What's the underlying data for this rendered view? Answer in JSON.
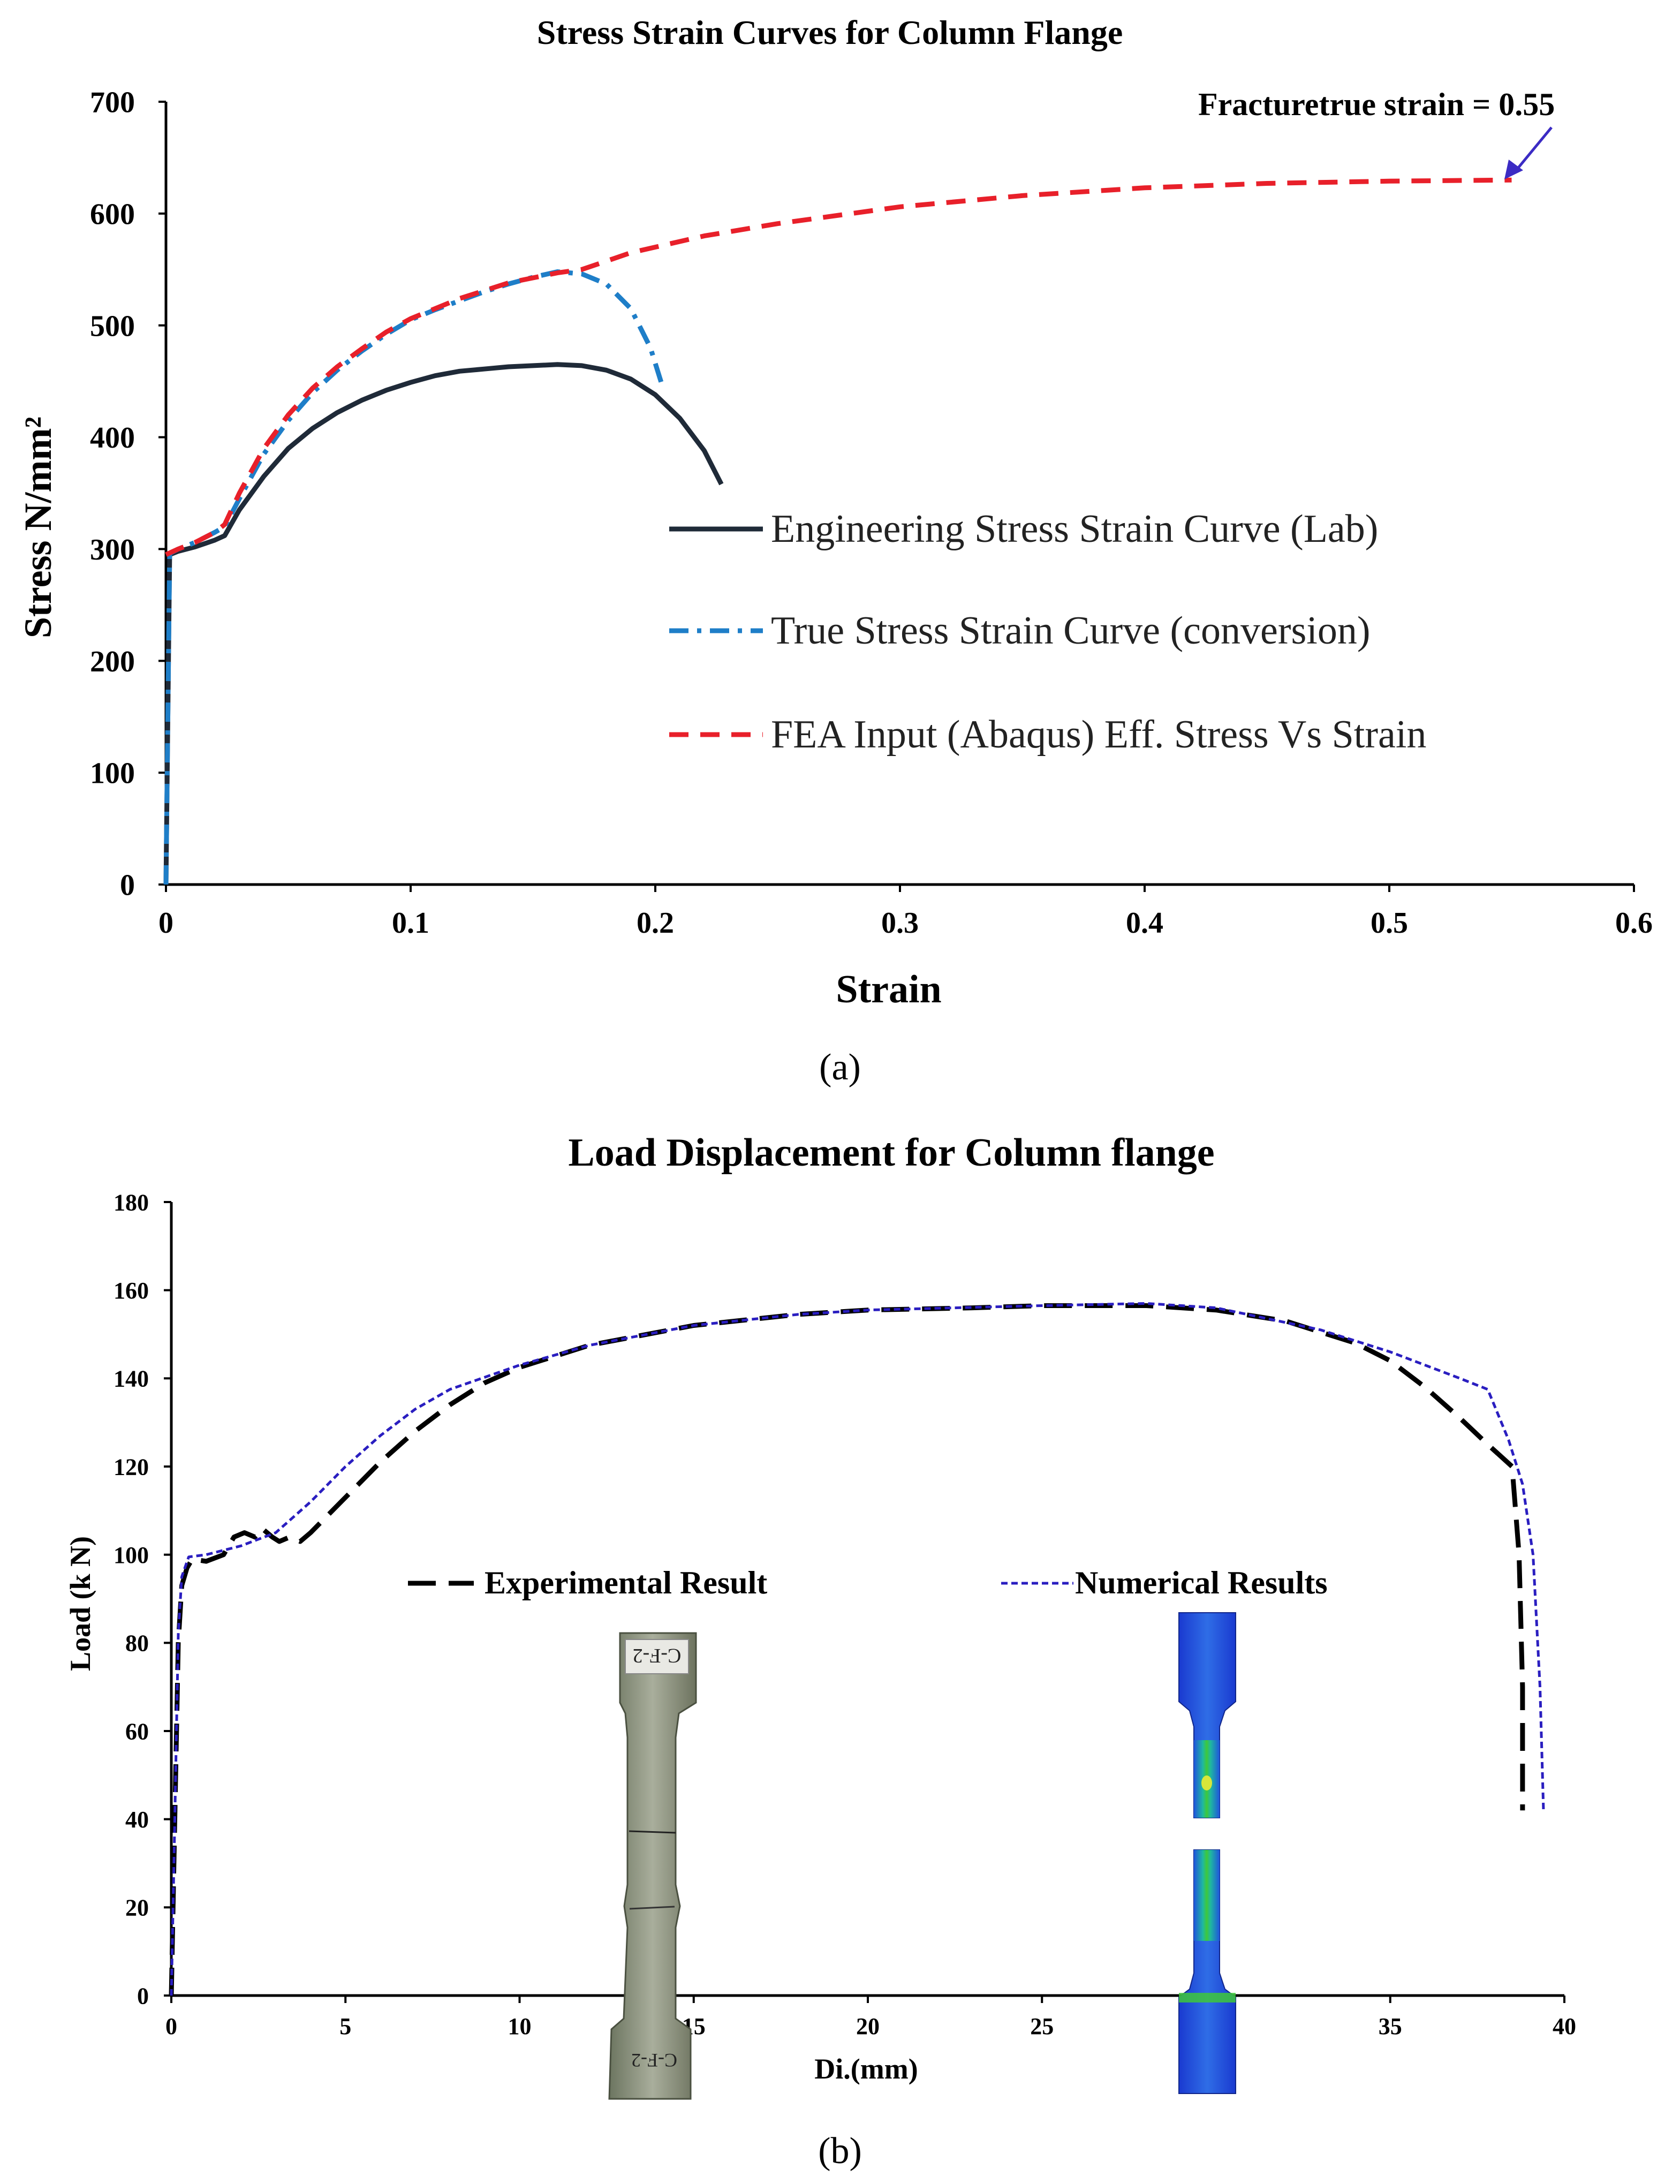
{
  "chart_data": [
    {
      "id": "a",
      "type": "line",
      "title": "Stress Strain Curves for Column Flange",
      "xlabel": "Strain",
      "ylabel": "Stress N/mm²",
      "xlim": [
        0,
        0.6
      ],
      "ylim": [
        0,
        700
      ],
      "xticks": [
        0,
        0.1,
        0.2,
        0.3,
        0.4,
        0.5,
        0.6
      ],
      "xtick_labels": [
        "0",
        "0.1",
        "0.2",
        "0.3",
        "0.4",
        "0.5",
        "0.6"
      ],
      "yticks": [
        0,
        100,
        200,
        300,
        400,
        500,
        600,
        700
      ],
      "ytick_labels": [
        "0",
        "100",
        "200",
        "300",
        "400",
        "500",
        "600",
        "700"
      ],
      "panel_label": "(a)",
      "annotation": {
        "text": "Fracturetrue strain = 0.55",
        "x": 0.55,
        "y": 630,
        "color": "#3b2bc4"
      },
      "series": [
        {
          "name": "Engineering Stress Strain Curve (Lab)",
          "color": "#1f2a38",
          "dash": "solid",
          "points": [
            [
              0,
              0
            ],
            [
              0.0015,
              295
            ],
            [
              0.005,
              298
            ],
            [
              0.012,
              302
            ],
            [
              0.02,
              308
            ],
            [
              0.024,
              312
            ],
            [
              0.03,
              335
            ],
            [
              0.04,
              365
            ],
            [
              0.05,
              390
            ],
            [
              0.06,
              408
            ],
            [
              0.07,
              422
            ],
            [
              0.08,
              433
            ],
            [
              0.09,
              442
            ],
            [
              0.1,
              449
            ],
            [
              0.11,
              455
            ],
            [
              0.12,
              459
            ],
            [
              0.13,
              461
            ],
            [
              0.14,
              463
            ],
            [
              0.15,
              464
            ],
            [
              0.16,
              465
            ],
            [
              0.17,
              464
            ],
            [
              0.18,
              460
            ],
            [
              0.19,
              452
            ],
            [
              0.2,
              438
            ],
            [
              0.21,
              417
            ],
            [
              0.22,
              388
            ],
            [
              0.227,
              358
            ]
          ]
        },
        {
          "name": "True Stress Strain Curve (conversion)",
          "color": "#1e7ec8",
          "dash": "dashdot",
          "points": [
            [
              0,
              0
            ],
            [
              0.0015,
              296
            ],
            [
              0.005,
              300
            ],
            [
              0.012,
              306
            ],
            [
              0.02,
              315
            ],
            [
              0.024,
              320
            ],
            [
              0.03,
              345
            ],
            [
              0.04,
              385
            ],
            [
              0.05,
              415
            ],
            [
              0.06,
              440
            ],
            [
              0.07,
              460
            ],
            [
              0.08,
              477
            ],
            [
              0.09,
              492
            ],
            [
              0.1,
              505
            ],
            [
              0.11,
              514
            ],
            [
              0.12,
              522
            ],
            [
              0.13,
              530
            ],
            [
              0.14,
              537
            ],
            [
              0.15,
              543
            ],
            [
              0.16,
              548
            ],
            [
              0.17,
              546
            ],
            [
              0.18,
              537
            ],
            [
              0.19,
              515
            ],
            [
              0.198,
              480
            ],
            [
              0.203,
              445
            ]
          ]
        },
        {
          "name": "FEA Input (Abaqus) Eff. Stress Vs Strain",
          "color": "#e8202a",
          "dash": "dashed",
          "points": [
            [
              0,
              295
            ],
            [
              0.005,
              300
            ],
            [
              0.012,
              306
            ],
            [
              0.02,
              315
            ],
            [
              0.024,
              322
            ],
            [
              0.03,
              350
            ],
            [
              0.04,
              390
            ],
            [
              0.05,
              420
            ],
            [
              0.06,
              444
            ],
            [
              0.07,
              463
            ],
            [
              0.08,
              479
            ],
            [
              0.09,
              494
            ],
            [
              0.1,
              506
            ],
            [
              0.12,
              524
            ],
            [
              0.14,
              538
            ],
            [
              0.16,
              547
            ],
            [
              0.17,
              550
            ],
            [
              0.19,
              565
            ],
            [
              0.22,
              580
            ],
            [
              0.25,
              591
            ],
            [
              0.3,
              606
            ],
            [
              0.35,
              616
            ],
            [
              0.4,
              623
            ],
            [
              0.45,
              627
            ],
            [
              0.5,
              629
            ],
            [
              0.55,
              630
            ]
          ]
        }
      ]
    },
    {
      "id": "b",
      "type": "line",
      "title": "Load Displacement for Column flange",
      "xlabel": "Di.(mm)",
      "ylabel": "Load (k N)",
      "xlim": [
        0,
        40
      ],
      "ylim": [
        0,
        180
      ],
      "xticks": [
        0,
        5,
        10,
        15,
        20,
        25,
        30,
        35,
        40
      ],
      "xtick_labels": [
        "0",
        "5",
        "10",
        "15",
        "20",
        "25",
        "30",
        "35",
        "40"
      ],
      "yticks": [
        0,
        20,
        40,
        60,
        80,
        100,
        120,
        140,
        160,
        180
      ],
      "ytick_labels": [
        "0",
        "20",
        "40",
        "60",
        "80",
        "100",
        "120",
        "140",
        "160",
        "180"
      ],
      "panel_label": "(b)",
      "series": [
        {
          "name": "Experimental Result",
          "color": "#000000",
          "dash": "longdash",
          "points": [
            [
              0,
              0
            ],
            [
              0.1,
              40
            ],
            [
              0.2,
              80
            ],
            [
              0.3,
              93
            ],
            [
              0.45,
              97
            ],
            [
              0.6,
              99
            ],
            [
              1,
              98.5
            ],
            [
              1.5,
              100
            ],
            [
              1.8,
              104
            ],
            [
              2.1,
              105
            ],
            [
              2.4,
              104
            ],
            [
              2.6,
              106
            ],
            [
              2.9,
              104
            ],
            [
              3.1,
              103
            ],
            [
              3.4,
              104
            ],
            [
              3.7,
              103
            ],
            [
              4,
              105
            ],
            [
              5,
              113
            ],
            [
              6,
              121
            ],
            [
              7,
              128
            ],
            [
              8,
              134
            ],
            [
              9,
              139
            ],
            [
              10,
              142.5
            ],
            [
              12,
              147.5
            ],
            [
              15,
              152
            ],
            [
              18,
              154.5
            ],
            [
              20,
              155.5
            ],
            [
              23,
              156
            ],
            [
              25,
              156.5
            ],
            [
              28,
              156.5
            ],
            [
              30,
              155.5
            ],
            [
              32,
              153
            ],
            [
              34,
              148
            ],
            [
              35,
              144
            ],
            [
              36,
              138
            ],
            [
              37,
              131
            ],
            [
              37.8,
              125
            ],
            [
              38.5,
              120
            ],
            [
              38.7,
              100
            ],
            [
              38.8,
              70
            ],
            [
              38.8,
              42
            ]
          ]
        },
        {
          "name": "Numerical Results",
          "color": "#2a1ec0",
          "dash": "shortdash",
          "points": [
            [
              0,
              0
            ],
            [
              0.1,
              40
            ],
            [
              0.2,
              82
            ],
            [
              0.3,
              95
            ],
            [
              0.5,
              99.5
            ],
            [
              1,
              100
            ],
            [
              1.5,
              101
            ],
            [
              2,
              102
            ],
            [
              2.5,
              103.5
            ],
            [
              3,
              105
            ],
            [
              4,
              112
            ],
            [
              5,
              120
            ],
            [
              6,
              127
            ],
            [
              7,
              133
            ],
            [
              8,
              137.5
            ],
            [
              10,
              143
            ],
            [
              12,
              147.5
            ],
            [
              15,
              152
            ],
            [
              18,
              154.5
            ],
            [
              20,
              155.5
            ],
            [
              25,
              156.5
            ],
            [
              28,
              157
            ],
            [
              30,
              156
            ],
            [
              33,
              151
            ],
            [
              35,
              146
            ],
            [
              37,
              140
            ],
            [
              37.8,
              137.5
            ],
            [
              38.4,
              126
            ],
            [
              38.8,
              116
            ],
            [
              39.1,
              100
            ],
            [
              39.3,
              70
            ],
            [
              39.4,
              42
            ]
          ]
        }
      ],
      "images": [
        {
          "name": "Experimental specimen photo",
          "label_top": "C-F-2",
          "label_bottom": "C-F-2"
        },
        {
          "name": "Numerical specimen contour"
        }
      ]
    }
  ]
}
